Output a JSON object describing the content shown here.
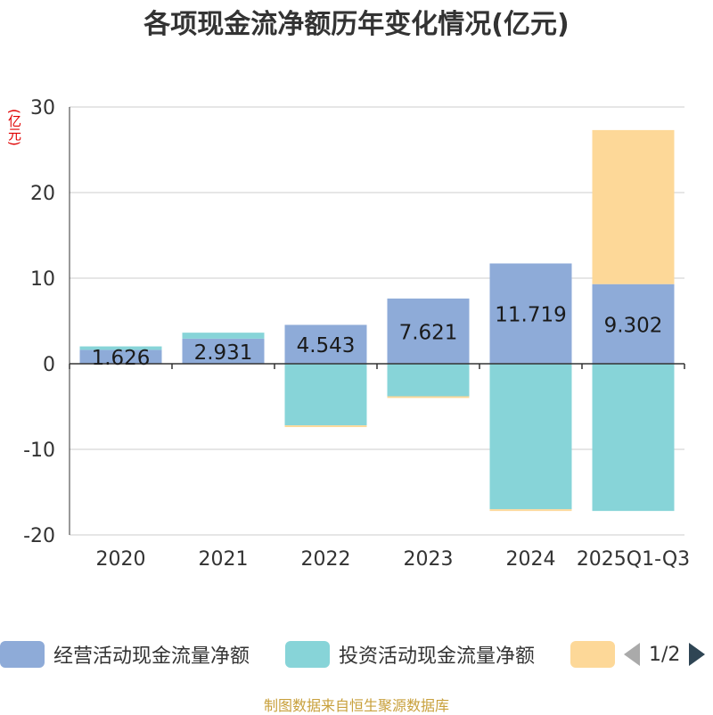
{
  "chart_data": {
    "type": "bar",
    "stacked": true,
    "title": "各项现金流净额历年变化情况(亿元)",
    "ylabel": "(亿元)",
    "ylim": [
      -20,
      30
    ],
    "yticks": [
      30,
      20,
      10,
      0,
      -10,
      -20
    ],
    "categories": [
      "2020",
      "2021",
      "2022",
      "2023",
      "2024",
      "2025Q1-Q3"
    ],
    "series": [
      {
        "name": "经营活动现金流量净额",
        "color": "#8eabd8",
        "values": [
          1.626,
          2.931,
          4.543,
          7.621,
          11.719,
          9.302
        ],
        "labels": [
          "1.626",
          "2.931",
          "4.543",
          "7.621",
          "11.719",
          "9.302"
        ]
      },
      {
        "name": "投资活动现金流量净额",
        "color": "#87d4d8",
        "values": [
          0.4,
          0.7,
          -7.2,
          -3.8,
          -17.0,
          -17.2
        ]
      },
      {
        "name": "",
        "color": "#fdd898",
        "values": [
          0,
          0,
          -0.2,
          -0.2,
          -0.2,
          18.0
        ]
      }
    ],
    "legend_position": "bottom",
    "grid": true
  },
  "legend": {
    "page_text": "1/2"
  },
  "footer": "制图数据来自恒生聚源数据库"
}
